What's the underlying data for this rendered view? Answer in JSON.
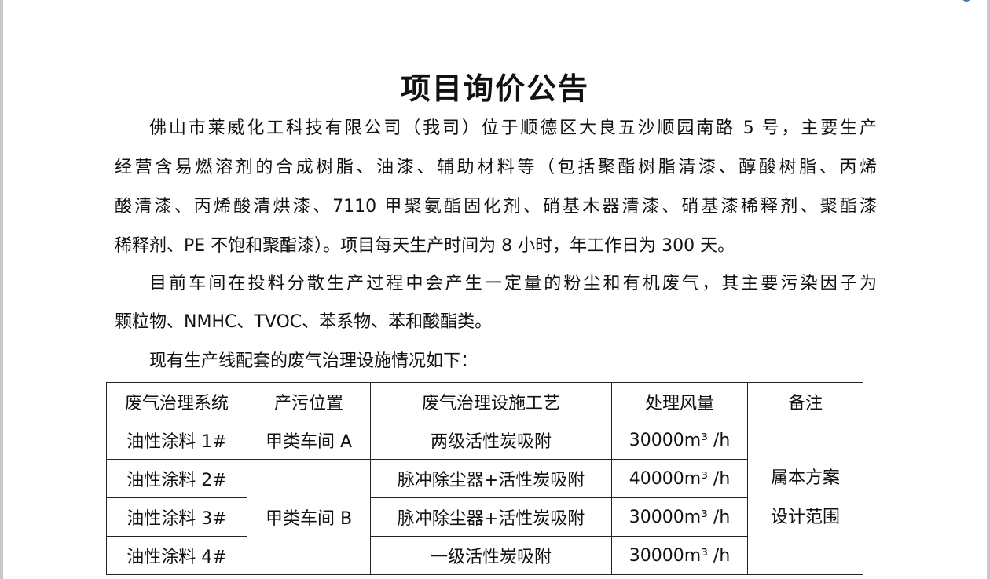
{
  "title": "项目询价公告",
  "paragraphs": [
    [
      "佛山市莱威化工科技有限公司（我司）位于顺德区大良五沙顺园南路 5 号，主要生产",
      "经营含易燃溶剂的合成树脂、油漆、辅助材料等（包括聚酯树脂清漆、醇酸树脂、丙烯",
      "酸清漆、丙烯酸清烘漆、7110 甲聚氨酯固化剂、硝基木器清漆、硝基漆稀释剂、聚酯漆",
      "稀释剂、PE 不饱和聚酯漆）。项目每天生产时间为 8 小时，年工作日为 300 天。"
    ],
    [
      "目前车间在投料分散生产过程中会产生一定量的粉尘和有机废气，其主要污染因子为",
      "颗粒物、NMHC、TVOC、苯系物、苯和酸酯类。"
    ],
    [
      "现有生产线配套的废气治理设施情况如下："
    ]
  ],
  "table": {
    "headers": [
      "废气治理系统",
      "产污位置",
      "废气治理设施工艺",
      "处理风量",
      "备注"
    ],
    "rows": [
      {
        "system": "油性涂料  1#",
        "location": "甲类车间 A",
        "process": "两级活性炭吸附",
        "flow": "30000m³ /h"
      },
      {
        "system": "油性涂料  2#",
        "location": "甲类车间 B",
        "process": "脉冲除尘器+活性炭吸附",
        "flow": "40000m³ /h"
      },
      {
        "system": "油性涂料  3#",
        "process": "脉冲除尘器+活性炭吸附",
        "flow": "30000m³ /h"
      },
      {
        "system": "油性涂料  4#",
        "process": "一级活性炭吸附",
        "flow": "30000m³ /h"
      }
    ],
    "remark": [
      "属本方案",
      "设计范围"
    ]
  }
}
